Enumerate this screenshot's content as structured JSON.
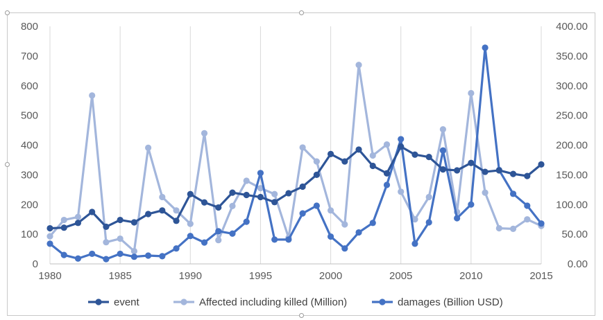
{
  "chart_data": {
    "type": "line",
    "title": "",
    "xlabel": "",
    "ylabel": "",
    "y2label": "",
    "x": [
      1980,
      1981,
      1982,
      1983,
      1984,
      1985,
      1986,
      1987,
      1988,
      1989,
      1990,
      1991,
      1992,
      1993,
      1994,
      1995,
      1996,
      1997,
      1998,
      1999,
      2000,
      2001,
      2002,
      2003,
      2004,
      2005,
      2006,
      2007,
      2008,
      2009,
      2010,
      2011,
      2012,
      2013,
      2014,
      2015
    ],
    "xlim": [
      1980,
      2015
    ],
    "x_ticks": [
      "1980",
      "1985",
      "1990",
      "1995",
      "2000",
      "2005",
      "2010",
      "2015"
    ],
    "ylim": [
      0,
      800
    ],
    "y_ticks": [
      "0",
      "100",
      "200",
      "300",
      "400",
      "500",
      "600",
      "700",
      "800"
    ],
    "y2lim": [
      0,
      400
    ],
    "y2_ticks": [
      "0.00",
      "50.00",
      "100.00",
      "150.00",
      "200.00",
      "250.00",
      "300.00",
      "350.00",
      "400.00"
    ],
    "grid": "vertical",
    "legend_position": "bottom",
    "series": [
      {
        "name": "event",
        "axis": "left",
        "color": "#2e5597",
        "values": [
          120,
          122,
          138,
          175,
          125,
          148,
          140,
          168,
          180,
          145,
          235,
          207,
          190,
          240,
          232,
          225,
          208,
          238,
          260,
          300,
          370,
          345,
          385,
          330,
          305,
          395,
          368,
          360,
          318,
          315,
          340,
          310,
          315,
          303,
          296,
          335
        ]
      },
      {
        "name": "Affected including killed (Million)",
        "axis": "left",
        "color": "#a3b6dc",
        "values": [
          93,
          148,
          158,
          567,
          73,
          85,
          43,
          391,
          225,
          180,
          135,
          440,
          80,
          195,
          280,
          255,
          235,
          88,
          392,
          345,
          180,
          133,
          670,
          365,
          402,
          243,
          150,
          225,
          453,
          175,
          575,
          240,
          120,
          118,
          150,
          128
        ]
      },
      {
        "name": "damages (Billion USD)",
        "axis": "right",
        "color": "#4472c4",
        "values": [
          34,
          15,
          9,
          17,
          8,
          17,
          12,
          14,
          13,
          26,
          47,
          36,
          55,
          51,
          71,
          153,
          41,
          41,
          85,
          98,
          46,
          26,
          53,
          69,
          133,
          210,
          34,
          70,
          191,
          77,
          100,
          364,
          158,
          118,
          98,
          68
        ]
      }
    ]
  }
}
